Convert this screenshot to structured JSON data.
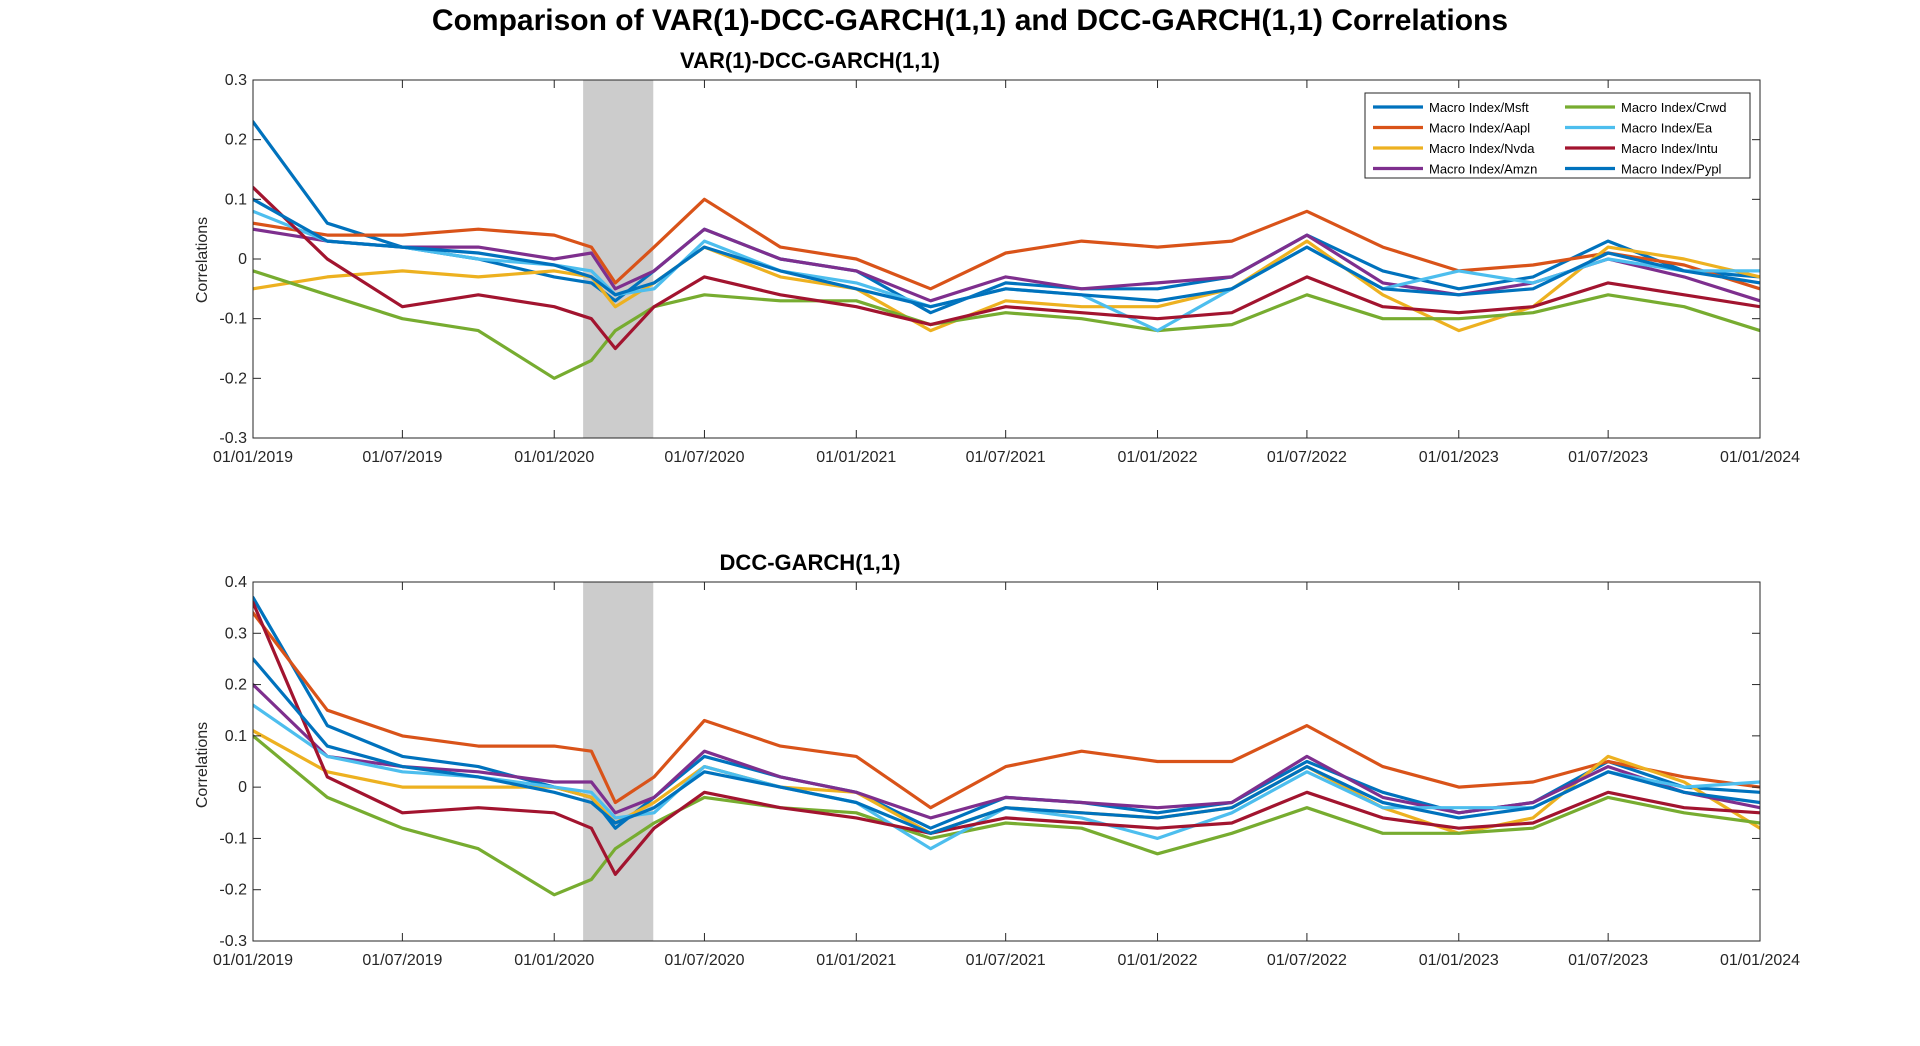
{
  "figure": {
    "title": "Comparison of VAR(1)-DCC-GARCH(1,1) and DCC-GARCH(1,1) Correlations"
  },
  "chart_data": [
    {
      "type": "line",
      "title": "VAR(1)-DCC-GARCH(1,1)",
      "xlabel": "",
      "ylabel": "Correlations",
      "xlim": [
        "01/01/2019",
        "01/01/2024"
      ],
      "ylim": [
        -0.3,
        0.3
      ],
      "yticks": [
        -0.3,
        -0.2,
        -0.1,
        0,
        0.1,
        0.2,
        0.3
      ],
      "ytick_labels": [
        "-0.3",
        "-0.2",
        "-0.1",
        "0",
        "0.1",
        "0.2",
        "0.3"
      ],
      "xtick_labels": [
        "01/01/2019",
        "01/07/2019",
        "01/01/2020",
        "01/07/2020",
        "01/01/2021",
        "01/07/2021",
        "01/01/2022",
        "01/07/2022",
        "01/01/2023",
        "01/07/2023",
        "01/01/2024"
      ],
      "grid": false,
      "legend_position": "top-right",
      "shaded_region": {
        "x_start": "2020-02-05",
        "x_end": "2020-04-30",
        "color": "#cccccc"
      },
      "x": [
        "2019-01-01",
        "2019-04-01",
        "2019-07-01",
        "2019-10-01",
        "2020-01-01",
        "2020-02-15",
        "2020-03-15",
        "2020-05-01",
        "2020-07-01",
        "2020-10-01",
        "2021-01-01",
        "2021-04-01",
        "2021-07-01",
        "2021-10-01",
        "2022-01-01",
        "2022-04-01",
        "2022-07-01",
        "2022-10-01",
        "2023-01-01",
        "2023-04-01",
        "2023-07-01",
        "2023-10-01",
        "2024-01-01"
      ],
      "series": [
        {
          "name": "Macro Index/Msft",
          "color": "#0072BD",
          "values": [
            0.23,
            0.06,
            0.02,
            0.0,
            -0.03,
            -0.04,
            -0.07,
            -0.02,
            0.05,
            0.0,
            -0.02,
            -0.09,
            -0.04,
            -0.05,
            -0.05,
            -0.03,
            0.04,
            -0.02,
            -0.05,
            -0.03,
            0.03,
            -0.02,
            -0.03
          ]
        },
        {
          "name": "Macro Index/Aapl",
          "color": "#D95319",
          "values": [
            0.06,
            0.04,
            0.04,
            0.05,
            0.04,
            0.02,
            -0.04,
            0.02,
            0.1,
            0.02,
            0.0,
            -0.05,
            0.01,
            0.03,
            0.02,
            0.03,
            0.08,
            0.02,
            -0.02,
            -0.01,
            0.01,
            -0.01,
            -0.05
          ]
        },
        {
          "name": "Macro Index/Nvda",
          "color": "#EDB120",
          "values": [
            -0.05,
            -0.03,
            -0.02,
            -0.03,
            -0.02,
            -0.03,
            -0.08,
            -0.04,
            0.02,
            -0.03,
            -0.05,
            -0.12,
            -0.07,
            -0.08,
            -0.08,
            -0.05,
            0.03,
            -0.06,
            -0.12,
            -0.08,
            0.02,
            0.0,
            -0.03
          ]
        },
        {
          "name": "Macro Index/Amzn",
          "color": "#7E2F8E",
          "values": [
            0.05,
            0.03,
            0.02,
            0.02,
            0.0,
            0.01,
            -0.05,
            -0.02,
            0.05,
            0.0,
            -0.02,
            -0.07,
            -0.03,
            -0.05,
            -0.04,
            -0.03,
            0.04,
            -0.04,
            -0.06,
            -0.04,
            0.0,
            -0.03,
            -0.07
          ]
        },
        {
          "name": "Macro Index/Crwd",
          "color": "#77AC30",
          "values": [
            -0.02,
            -0.06,
            -0.1,
            -0.12,
            -0.2,
            -0.17,
            -0.12,
            -0.08,
            -0.06,
            -0.07,
            -0.07,
            -0.11,
            -0.09,
            -0.1,
            -0.12,
            -0.11,
            -0.06,
            -0.1,
            -0.1,
            -0.09,
            -0.06,
            -0.08,
            -0.12
          ]
        },
        {
          "name": "Macro Index/Ea",
          "color": "#4DBEEE",
          "values": [
            0.08,
            0.03,
            0.02,
            0.0,
            -0.01,
            -0.02,
            -0.06,
            -0.05,
            0.03,
            -0.02,
            -0.04,
            -0.08,
            -0.05,
            -0.06,
            -0.12,
            -0.05,
            0.02,
            -0.05,
            -0.02,
            -0.04,
            0.0,
            -0.02,
            -0.02
          ]
        },
        {
          "name": "Macro Index/Intu",
          "color": "#A2142F",
          "values": [
            0.12,
            0.0,
            -0.08,
            -0.06,
            -0.08,
            -0.1,
            -0.15,
            -0.08,
            -0.03,
            -0.06,
            -0.08,
            -0.11,
            -0.08,
            -0.09,
            -0.1,
            -0.09,
            -0.03,
            -0.08,
            -0.09,
            -0.08,
            -0.04,
            -0.06,
            -0.08
          ]
        },
        {
          "name": "Macro Index/Pypl",
          "color": "#0072BD",
          "values": [
            0.1,
            0.03,
            0.02,
            0.01,
            -0.01,
            -0.03,
            -0.06,
            -0.04,
            0.02,
            -0.02,
            -0.05,
            -0.08,
            -0.05,
            -0.06,
            -0.07,
            -0.05,
            0.02,
            -0.05,
            -0.06,
            -0.05,
            0.01,
            -0.02,
            -0.04
          ]
        }
      ]
    },
    {
      "type": "line",
      "title": "DCC-GARCH(1,1)",
      "xlabel": "",
      "ylabel": "Correlations",
      "xlim": [
        "01/01/2019",
        "01/01/2024"
      ],
      "ylim": [
        -0.3,
        0.4
      ],
      "yticks": [
        -0.3,
        -0.2,
        -0.1,
        0,
        0.1,
        0.2,
        0.3,
        0.4
      ],
      "ytick_labels": [
        "-0.3",
        "-0.2",
        "-0.1",
        "0",
        "0.1",
        "0.2",
        "0.3",
        "0.4"
      ],
      "xtick_labels": [
        "01/01/2019",
        "01/07/2019",
        "01/01/2020",
        "01/07/2020",
        "01/01/2021",
        "01/07/2021",
        "01/01/2022",
        "01/07/2022",
        "01/01/2023",
        "01/07/2023",
        "01/01/2024"
      ],
      "grid": false,
      "legend_position": "none",
      "shaded_region": {
        "x_start": "2020-02-05",
        "x_end": "2020-04-30",
        "color": "#cccccc"
      },
      "x": [
        "2019-01-01",
        "2019-04-01",
        "2019-07-01",
        "2019-10-01",
        "2020-01-01",
        "2020-02-15",
        "2020-03-15",
        "2020-05-01",
        "2020-07-01",
        "2020-10-01",
        "2021-01-01",
        "2021-04-01",
        "2021-07-01",
        "2021-10-01",
        "2022-01-01",
        "2022-04-01",
        "2022-07-01",
        "2022-10-01",
        "2023-01-01",
        "2023-04-01",
        "2023-07-01",
        "2023-10-01",
        "2024-01-01"
      ],
      "series": [
        {
          "name": "Macro Index/Msft",
          "color": "#0072BD",
          "values": [
            0.37,
            0.12,
            0.06,
            0.04,
            0.0,
            -0.02,
            -0.08,
            -0.02,
            0.06,
            0.02,
            -0.01,
            -0.08,
            -0.02,
            -0.03,
            -0.05,
            -0.03,
            0.05,
            -0.01,
            -0.05,
            -0.03,
            0.05,
            0.0,
            -0.01
          ]
        },
        {
          "name": "Macro Index/Aapl",
          "color": "#D95319",
          "values": [
            0.34,
            0.15,
            0.1,
            0.08,
            0.08,
            0.07,
            -0.03,
            0.02,
            0.13,
            0.08,
            0.06,
            -0.04,
            0.04,
            0.07,
            0.05,
            0.05,
            0.12,
            0.04,
            0.0,
            0.01,
            0.05,
            0.02,
            0.0
          ]
        },
        {
          "name": "Macro Index/Nvda",
          "color": "#EDB120",
          "values": [
            0.11,
            0.03,
            0.0,
            0.0,
            0.0,
            -0.02,
            -0.07,
            -0.03,
            0.04,
            0.0,
            -0.01,
            -0.09,
            -0.04,
            -0.05,
            -0.06,
            -0.04,
            0.04,
            -0.04,
            -0.09,
            -0.06,
            0.06,
            0.01,
            -0.08
          ]
        },
        {
          "name": "Macro Index/Amzn",
          "color": "#7E2F8E",
          "values": [
            0.2,
            0.06,
            0.04,
            0.03,
            0.01,
            0.01,
            -0.05,
            -0.02,
            0.07,
            0.02,
            -0.01,
            -0.06,
            -0.02,
            -0.03,
            -0.04,
            -0.03,
            0.06,
            -0.02,
            -0.05,
            -0.03,
            0.04,
            -0.01,
            -0.04
          ]
        },
        {
          "name": "Macro Index/Crwd",
          "color": "#77AC30",
          "values": [
            0.1,
            -0.02,
            -0.08,
            -0.12,
            -0.21,
            -0.18,
            -0.12,
            -0.07,
            -0.02,
            -0.04,
            -0.05,
            -0.1,
            -0.07,
            -0.08,
            -0.13,
            -0.09,
            -0.04,
            -0.09,
            -0.09,
            -0.08,
            -0.02,
            -0.05,
            -0.07
          ]
        },
        {
          "name": "Macro Index/Ea",
          "color": "#4DBEEE",
          "values": [
            0.16,
            0.06,
            0.03,
            0.02,
            0.0,
            -0.01,
            -0.06,
            -0.05,
            0.04,
            0.0,
            -0.03,
            -0.12,
            -0.04,
            -0.06,
            -0.1,
            -0.05,
            0.03,
            -0.04,
            -0.04,
            -0.04,
            0.03,
            0.0,
            0.01
          ]
        },
        {
          "name": "Macro Index/Intu",
          "color": "#A2142F",
          "values": [
            0.36,
            0.02,
            -0.05,
            -0.04,
            -0.05,
            -0.08,
            -0.17,
            -0.08,
            -0.01,
            -0.04,
            -0.06,
            -0.09,
            -0.06,
            -0.07,
            -0.08,
            -0.07,
            -0.01,
            -0.06,
            -0.08,
            -0.07,
            -0.01,
            -0.04,
            -0.05
          ]
        },
        {
          "name": "Macro Index/Pypl",
          "color": "#0072BD",
          "values": [
            0.25,
            0.08,
            0.04,
            0.02,
            -0.01,
            -0.03,
            -0.07,
            -0.04,
            0.03,
            0.0,
            -0.03,
            -0.09,
            -0.04,
            -0.05,
            -0.06,
            -0.04,
            0.04,
            -0.03,
            -0.06,
            -0.04,
            0.03,
            -0.01,
            -0.03
          ]
        }
      ]
    }
  ]
}
